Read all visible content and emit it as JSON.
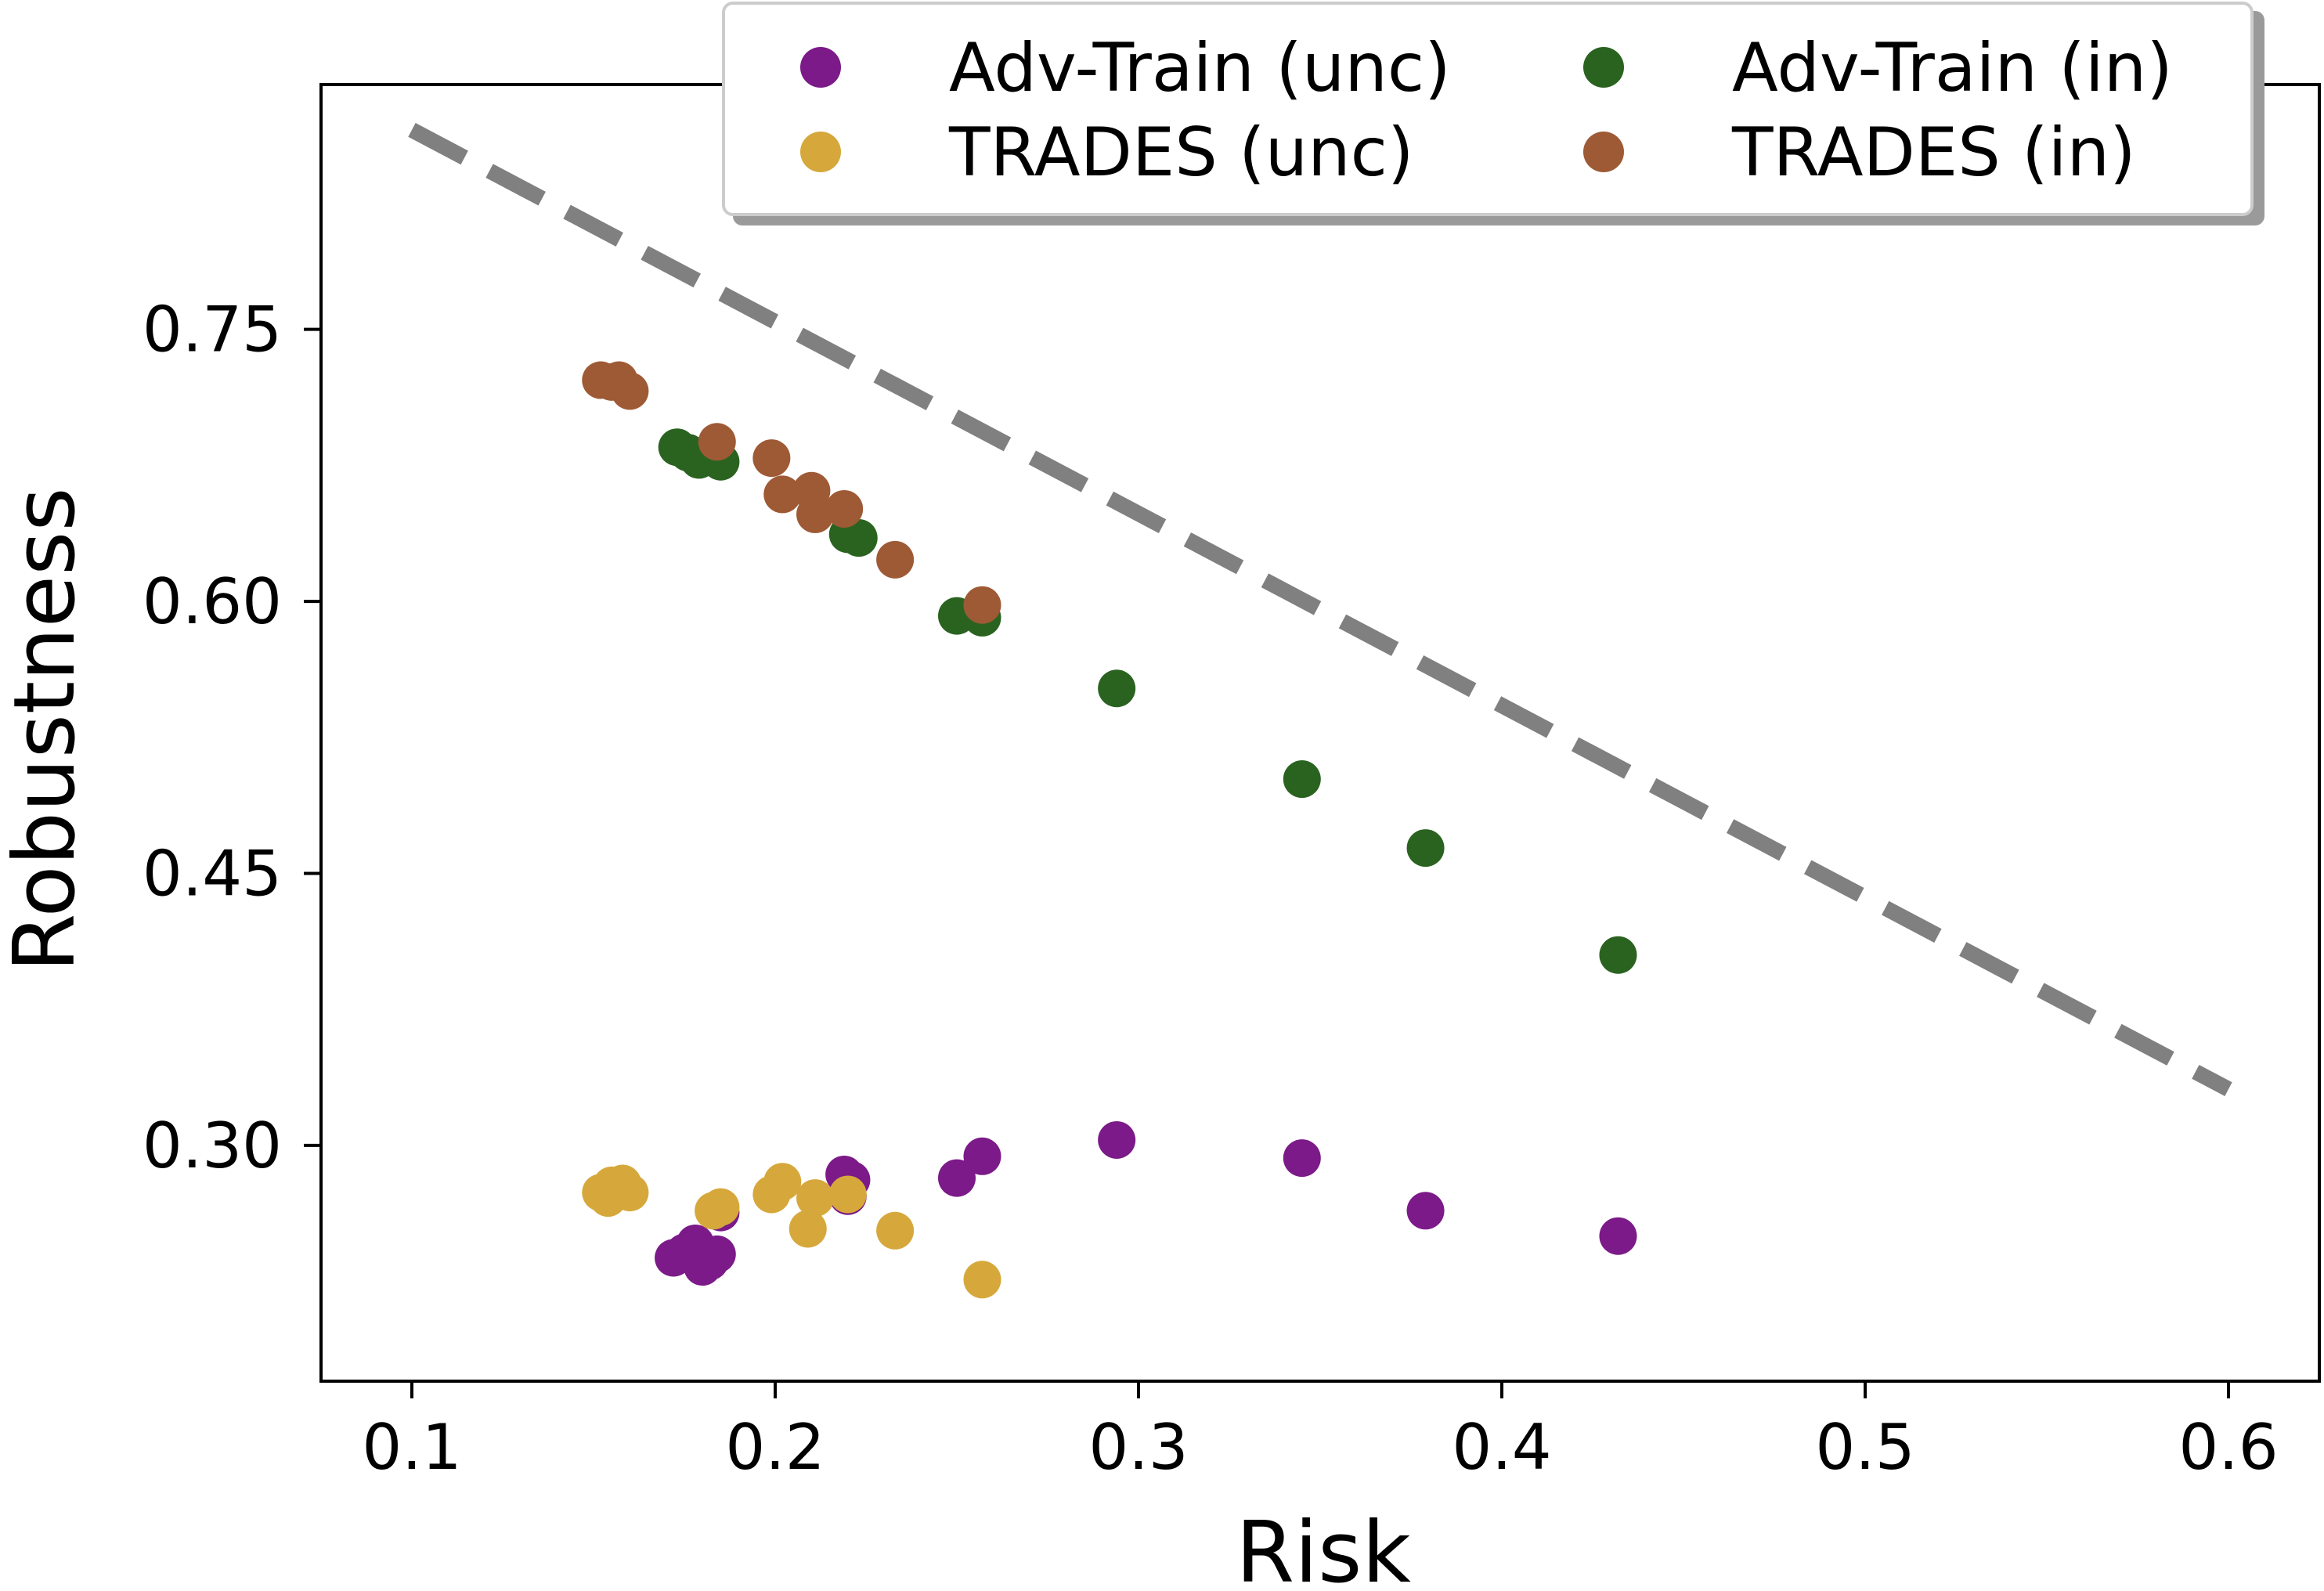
{
  "chart_data": {
    "type": "scatter",
    "title": "",
    "xlabel": "Risk",
    "ylabel": "Robustness",
    "xlim": [
      0.075,
      0.625
    ],
    "ylim": [
      0.17,
      0.885
    ],
    "xticks": [
      0.1,
      0.2,
      0.3,
      0.4,
      0.5,
      0.6
    ],
    "xtick_labels": [
      "0.1",
      "0.2",
      "0.3",
      "0.4",
      "0.5",
      "0.6"
    ],
    "yticks": [
      0.3,
      0.45,
      0.6,
      0.75
    ],
    "ytick_labels": [
      "0.30",
      "0.45",
      "0.60",
      "0.75"
    ],
    "grid": false,
    "legend_position": "top-right, above plot area, 2 columns",
    "series": [
      {
        "name": "Adv-Train (unc)",
        "color": "#7b1a88",
        "x": [
          0.172,
          0.175,
          0.178,
          0.18,
          0.182,
          0.184,
          0.185,
          0.219,
          0.221,
          0.22,
          0.25,
          0.257,
          0.294,
          0.345,
          0.379,
          0.432
        ],
        "y": [
          0.238,
          0.241,
          0.246,
          0.233,
          0.236,
          0.24,
          0.263,
          0.284,
          0.281,
          0.272,
          0.282,
          0.294,
          0.303,
          0.293,
          0.264,
          0.25
        ]
      },
      {
        "name": "Adv-Train (in)",
        "color": "#2a6320",
        "x": [
          0.173,
          0.176,
          0.179,
          0.182,
          0.185,
          0.22,
          0.223,
          0.25,
          0.257,
          0.294,
          0.345,
          0.379,
          0.432
        ],
        "y": [
          0.685,
          0.682,
          0.678,
          0.68,
          0.677,
          0.637,
          0.635,
          0.592,
          0.591,
          0.552,
          0.502,
          0.464,
          0.405
        ]
      },
      {
        "name": "TRADES (unc)",
        "color": "#d6a83c",
        "x": [
          0.152,
          0.155,
          0.158,
          0.16,
          0.154,
          0.183,
          0.185,
          0.199,
          0.202,
          0.209,
          0.211,
          0.22,
          0.233,
          0.257
        ],
        "y": [
          0.274,
          0.278,
          0.279,
          0.274,
          0.271,
          0.264,
          0.266,
          0.273,
          0.28,
          0.254,
          0.271,
          0.273,
          0.253,
          0.226
        ]
      },
      {
        "name": "TRADES (in)",
        "color": "#9e5a35",
        "x": [
          0.152,
          0.155,
          0.157,
          0.16,
          0.184,
          0.199,
          0.202,
          0.21,
          0.211,
          0.219,
          0.233,
          0.257
        ],
        "y": [
          0.722,
          0.721,
          0.722,
          0.716,
          0.688,
          0.679,
          0.659,
          0.661,
          0.648,
          0.651,
          0.623,
          0.598
        ]
      }
    ],
    "reference_line": {
      "style": "dashed",
      "color": "#808080",
      "x": [
        0.1,
        0.6
      ],
      "y": [
        0.86,
        0.331
      ]
    }
  }
}
